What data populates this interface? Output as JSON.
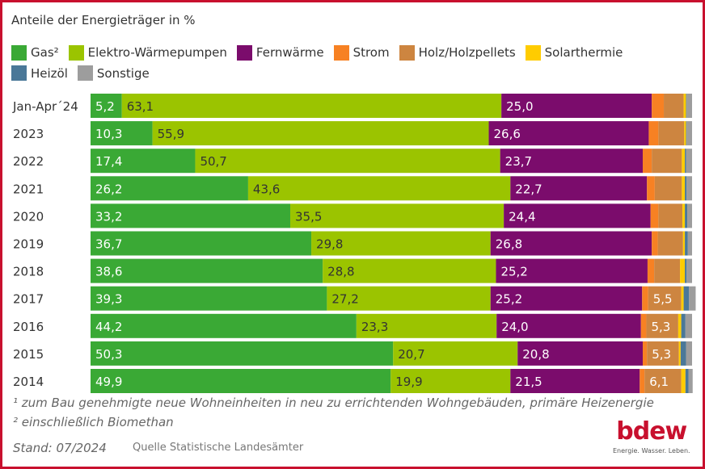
{
  "title": "Anteile der Energieträger in %",
  "footnotes": [
    "¹ zum Bau genehmigte neue Wohneinheiten in neu zu errichtenden Wohngebäuden, primäre Heizenergie",
    "² einschließlich Biomethan"
  ],
  "stand": "Stand: 07/2024",
  "source": "Quelle Statistische Landesämter",
  "logo": {
    "word": "bdew",
    "tagline": "Energie. Wasser. Leben."
  },
  "colors": {
    "frame": "#c8102e"
  },
  "chart_data": {
    "type": "bar",
    "orientation": "horizontal",
    "stacked": true,
    "normalized_percent": true,
    "legend_position": "top",
    "categories": [
      "Jan-Apr´24",
      "2023",
      "2022",
      "2021",
      "2020",
      "2019",
      "2018",
      "2017",
      "2016",
      "2015",
      "2014"
    ],
    "series": [
      {
        "name": "Gas²",
        "color": "#3aa935",
        "values": [
          5.2,
          10.3,
          17.4,
          26.2,
          33.2,
          36.7,
          38.6,
          39.3,
          44.2,
          50.3,
          49.9
        ],
        "label_color": "#ffffff"
      },
      {
        "name": "Elektro-Wärmepumpen",
        "color": "#9bc400",
        "values": [
          63.1,
          55.9,
          50.7,
          43.6,
          35.5,
          29.8,
          28.8,
          27.2,
          23.3,
          20.7,
          19.9
        ],
        "label_color": "#333333"
      },
      {
        "name": "Fernwärme",
        "color": "#7b0c6c",
        "values": [
          25.0,
          26.6,
          23.7,
          22.7,
          24.4,
          26.8,
          25.2,
          25.2,
          24.0,
          20.8,
          21.5
        ],
        "label_color": "#ffffff"
      },
      {
        "name": "Strom",
        "color": "#f78123",
        "values": [
          2.0,
          1.6,
          1.5,
          1.3,
          1.3,
          1.0,
          1.1,
          1.0,
          0.9,
          0.7,
          0.8
        ],
        "label_color": "#ffffff"
      },
      {
        "name": "Holz/Holzpellets",
        "color": "#cd8540",
        "values": [
          3.3,
          4.3,
          5.0,
          4.5,
          4.0,
          4.2,
          4.3,
          5.5,
          5.3,
          5.3,
          6.1
        ],
        "label_color": "#ffffff"
      },
      {
        "name": "Solarthermie",
        "color": "#ffcc00",
        "values": [
          0.4,
          0.3,
          0.5,
          0.5,
          0.4,
          0.3,
          0.8,
          0.4,
          0.5,
          0.3,
          0.7
        ],
        "label_color": "#333333"
      },
      {
        "name": "Heizöl",
        "color": "#4a7898",
        "values": [
          0.1,
          0.1,
          0.2,
          0.3,
          0.4,
          0.5,
          0.3,
          0.9,
          0.7,
          0.9,
          0.5
        ],
        "label_color": "#ffffff"
      },
      {
        "name": "Sonstige",
        "color": "#9d9d9d",
        "values": [
          0.9,
          0.9,
          1.0,
          0.9,
          0.8,
          0.7,
          0.9,
          1.1,
          1.1,
          1.0,
          0.7
        ],
        "label_color": "#ffffff"
      }
    ],
    "xlim": [
      0,
      100
    ]
  }
}
